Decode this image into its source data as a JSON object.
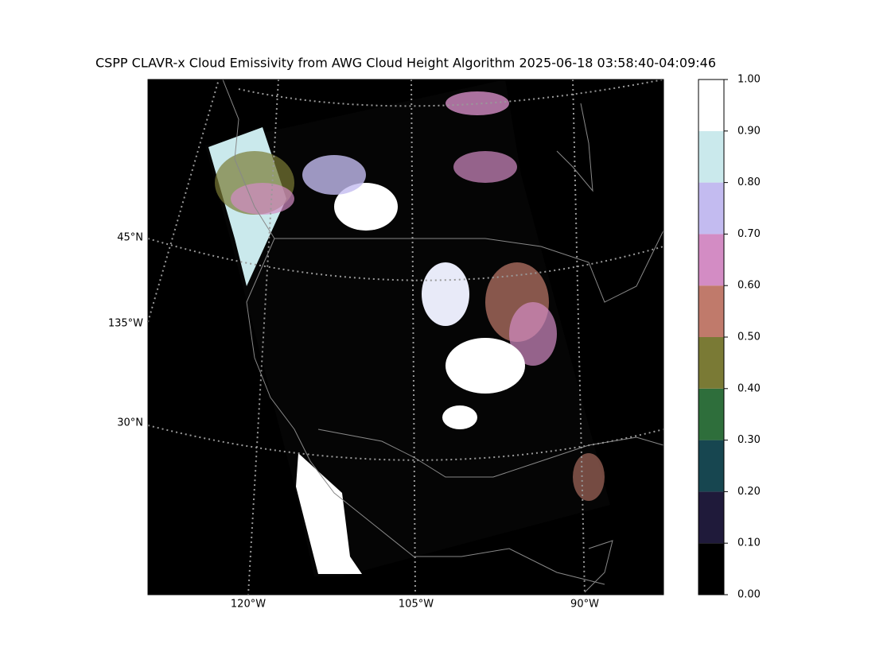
{
  "title": "CSPP CLAVR-x Cloud Emissivity from AWG Cloud Height Algorithm 2025-06-18 03:58:40-04:09:46",
  "map": {
    "lat_labels": [
      "45°N",
      "135°W",
      "30°N"
    ],
    "lon_labels": [
      "120°W",
      "105°W",
      "90°W"
    ]
  },
  "colorbar": {
    "lim": [
      0,
      1
    ],
    "ticks": [
      {
        "value": 0,
        "label": "0.00"
      },
      {
        "value": 0.1,
        "label": "0.10"
      },
      {
        "value": 0.2,
        "label": "0.20"
      },
      {
        "value": 0.3,
        "label": "0.30"
      },
      {
        "value": 0.4,
        "label": "0.40"
      },
      {
        "value": 0.5,
        "label": "0.50"
      },
      {
        "value": 0.6,
        "label": "0.60"
      },
      {
        "value": 0.7,
        "label": "0.70"
      },
      {
        "value": 0.8,
        "label": "0.80"
      },
      {
        "value": 0.9,
        "label": "0.90"
      },
      {
        "value": 1,
        "label": "1.00"
      }
    ],
    "colors": [
      "#000000",
      "#1f1a3a",
      "#174650",
      "#2e6e3b",
      "#7a7a35",
      "#c07a6b",
      "#d38cc4",
      "#c3bbf0",
      "#cae9ec",
      "#ffffff"
    ]
  }
}
